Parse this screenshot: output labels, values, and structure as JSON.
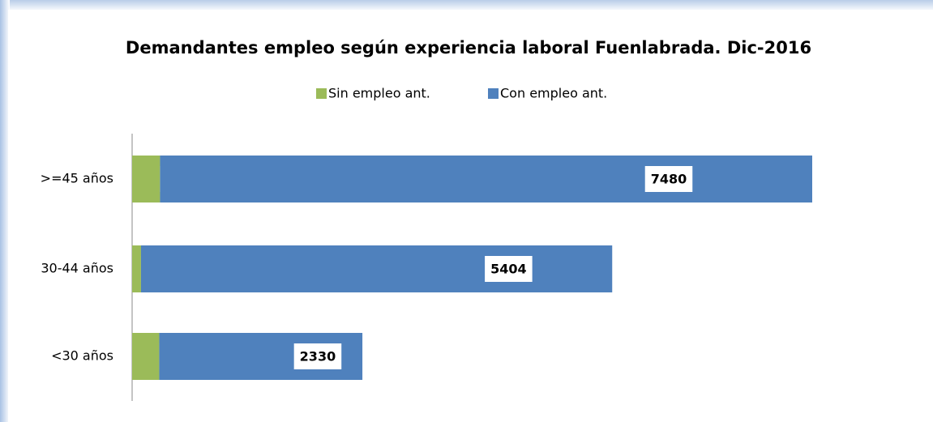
{
  "chart_data": {
    "type": "stacked-bar-horizontal",
    "title": "Demandantes empleo según experiencia laboral Fuenlabrada. Dic-2016",
    "categories": [
      ">=45 años",
      "30-44 años",
      "<30 años"
    ],
    "series": [
      {
        "name": "Sin empleo ant.",
        "color": "#9bbb59",
        "values": [
          320,
          102,
          311
        ]
      },
      {
        "name": "Con empleo ant.",
        "color": "#4f81bd",
        "values": [
          7480,
          5404,
          2330
        ]
      }
    ],
    "legend": "top"
  }
}
